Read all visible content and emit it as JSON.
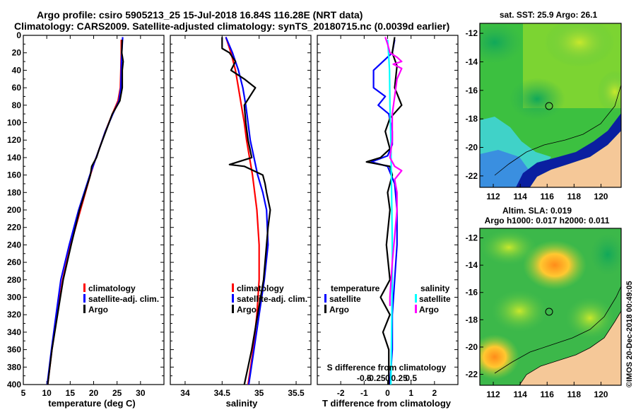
{
  "header": {
    "line1": "Argo profile: csiro 5905213_25 15-Jul-2018 16.84S 116.28E (NRT data)",
    "line2": "Climatology: CARS2009. Satellite-adjusted climatology: synTS_20180715.nc (0.0039d earlier)"
  },
  "colors": {
    "climatology": "#ff0000",
    "satellite": "#0000ff",
    "argo": "#000000",
    "argo_salinity_diff": "#ff00ff",
    "satellite_salinity_diff": "#00ffff",
    "land": "#f5c898"
  },
  "chart_data": [
    {
      "type": "line",
      "name": "temperature-profile",
      "xlabel": "temperature (deg C)",
      "ylabel": "",
      "xlim": [
        5,
        35
      ],
      "ylim": [
        400,
        0
      ],
      "xticks": [
        "5",
        "10",
        "15",
        "20",
        "25",
        "30"
      ],
      "yticks": [
        "0",
        "20",
        "40",
        "60",
        "80",
        "100",
        "120",
        "140",
        "160",
        "180",
        "200",
        "220",
        "240",
        "260",
        "280",
        "300",
        "320",
        "340",
        "360",
        "380",
        "400"
      ],
      "legend": [
        "climatology",
        "satellite-adj. clim.",
        "Argo"
      ],
      "series": [
        {
          "name": "climatology",
          "color": "#ff0000",
          "depth": [
            5,
            20,
            40,
            60,
            75,
            90,
            110,
            130,
            145,
            160,
            200,
            240,
            280,
            320,
            360,
            400
          ],
          "values": [
            25.9,
            25.9,
            25.8,
            25.7,
            25.2,
            24.0,
            22.5,
            21.2,
            20.2,
            19.3,
            17.2,
            15.1,
            13.4,
            12.2,
            11.1,
            10.2
          ]
        },
        {
          "name": "satellite-adj. clim.",
          "color": "#0000ff",
          "depth": [
            2,
            20,
            40,
            60,
            75,
            90,
            110,
            130,
            145,
            160,
            200,
            240,
            280,
            320,
            360,
            400
          ],
          "values": [
            26.2,
            26.0,
            25.9,
            25.8,
            25.4,
            24.1,
            22.5,
            21.2,
            20.2,
            19.2,
            16.8,
            14.8,
            13.0,
            12.0,
            11.0,
            10.1
          ]
        },
        {
          "name": "Argo",
          "color": "#000000",
          "depth": [
            5,
            20,
            30,
            40,
            60,
            75,
            90,
            110,
            130,
            140,
            150,
            160,
            200,
            240,
            280,
            300,
            320,
            360,
            400
          ],
          "values": [
            26.1,
            26.0,
            26.3,
            26.1,
            26.1,
            25.6,
            24.0,
            22.6,
            21.2,
            20.6,
            19.6,
            19.3,
            17.0,
            15.2,
            13.5,
            12.9,
            12.3,
            11.1,
            10.2
          ]
        }
      ]
    },
    {
      "type": "line",
      "name": "salinity-profile",
      "xlabel": "salinity",
      "ylabel": "",
      "xlim": [
        33.8,
        35.7
      ],
      "ylim": [
        400,
        0
      ],
      "xticks": [
        "34",
        "34.5",
        "35",
        "35.5"
      ],
      "legend": [
        "climatology",
        "satellite-adj. clim.",
        "Argo"
      ],
      "series": [
        {
          "name": "climatology",
          "color": "#ff0000",
          "depth": [
            2,
            20,
            40,
            60,
            80,
            100,
            120,
            140,
            160,
            180,
            200,
            240,
            280,
            320,
            360,
            400
          ],
          "values": [
            34.55,
            34.62,
            34.68,
            34.72,
            34.76,
            34.8,
            34.83,
            34.87,
            34.91,
            34.94,
            34.97,
            35.0,
            35.0,
            34.97,
            34.92,
            34.85
          ]
        },
        {
          "name": "satellite-adj. clim.",
          "color": "#0000ff",
          "depth": [
            2,
            20,
            40,
            60,
            80,
            100,
            120,
            140,
            160,
            180,
            200,
            240,
            280,
            320,
            360,
            400
          ],
          "values": [
            34.55,
            34.64,
            34.72,
            34.78,
            34.82,
            34.85,
            34.88,
            34.93,
            34.98,
            35.05,
            35.1,
            35.12,
            35.07,
            35.0,
            34.93,
            34.86
          ]
        },
        {
          "name": "Argo",
          "color": "#000000",
          "depth": [
            2,
            15,
            20,
            30,
            40,
            50,
            60,
            80,
            100,
            120,
            140,
            148,
            150,
            160,
            170,
            180,
            200,
            220,
            240,
            260,
            280,
            300,
            320,
            340,
            360,
            380,
            400
          ],
          "values": [
            34.5,
            34.5,
            34.6,
            34.68,
            34.62,
            34.8,
            34.95,
            34.8,
            34.82,
            34.85,
            34.9,
            34.6,
            34.8,
            35.05,
            35.08,
            35.1,
            35.15,
            35.12,
            35.1,
            35.08,
            35.06,
            35.02,
            34.98,
            34.94,
            34.9,
            34.85,
            34.8
          ]
        }
      ]
    },
    {
      "type": "line",
      "name": "difference-profile",
      "xlabel": "T difference from climatology",
      "ylabel": "",
      "xlim": [
        -3,
        3
      ],
      "ylim": [
        400,
        0
      ],
      "xticks": [
        "-2",
        "-1",
        "0",
        "1",
        "2"
      ],
      "secondary_xlabel": "S difference from climatology",
      "secondary_xticks": [
        "-0.5",
        "-0.25",
        "0",
        "0.25",
        "0.5"
      ],
      "legend": [
        "temperature",
        "satellite",
        "Argo",
        "salinity",
        "satellite",
        "Argo"
      ],
      "series": [
        {
          "name": "temperature satellite",
          "color": "#0000ff",
          "depth": [
            5,
            20,
            40,
            60,
            70,
            80,
            90,
            110,
            125,
            138,
            145,
            150,
            170,
            200,
            240,
            280,
            320,
            360,
            400
          ],
          "values": [
            0.3,
            0.2,
            -0.6,
            -0.6,
            -0.1,
            -0.4,
            0.05,
            0.2,
            0.2,
            0.0,
            -0.7,
            0.0,
            0.3,
            0.4,
            0.4,
            0.3,
            0.2,
            0.2,
            0.1
          ]
        },
        {
          "name": "temperature Argo",
          "color": "#000000",
          "depth": [
            2,
            20,
            35,
            60,
            80,
            95,
            110,
            130,
            140,
            145,
            150,
            160,
            180,
            200,
            240,
            280,
            300,
            320,
            340,
            360,
            400
          ],
          "values": [
            0.3,
            0.2,
            0.4,
            0.3,
            0.6,
            0.1,
            -0.1,
            0.1,
            -0.3,
            -0.9,
            0.1,
            0.2,
            0.0,
            0.1,
            -0.05,
            0.1,
            -0.3,
            0.1,
            -0.2,
            0.05,
            0.05
          ]
        },
        {
          "name": "salinity satellite",
          "color": "#00ffff",
          "depth": [
            5,
            20,
            40,
            80,
            120,
            160,
            200,
            240,
            280,
            320,
            360,
            400
          ],
          "values": [
            0.0,
            0.02,
            0.04,
            0.05,
            0.07,
            0.08,
            0.09,
            0.1,
            0.1,
            0.09,
            0.08,
            0.07
          ]
        },
        {
          "name": "salinity Argo",
          "color": "#ff00ff",
          "depth": [
            2,
            10,
            20,
            25,
            30,
            33,
            38,
            50,
            70,
            90,
            120,
            140,
            150,
            155,
            165,
            180,
            200,
            230,
            260,
            300,
            310
          ],
          "values": [
            -0.05,
            0.0,
            0.05,
            0.2,
            0.3,
            0.12,
            0.3,
            0.2,
            0.15,
            0.1,
            0.1,
            0.05,
            0.15,
            0.3,
            0.15,
            0.2,
            0.2,
            0.15,
            0.1,
            0.05,
            0.05
          ]
        }
      ]
    },
    {
      "type": "heatmap",
      "name": "sst-map",
      "title": "sat. SST: 25.9 Argo: 26.1",
      "xlim": [
        111,
        121.5
      ],
      "ylim": [
        -22.8,
        -11.3
      ],
      "xticks": [
        "112",
        "114",
        "116",
        "118",
        "120"
      ],
      "yticks": [
        "-12",
        "-14",
        "-16",
        "-18",
        "-20",
        "-22"
      ],
      "float_position": {
        "lon": 116.28,
        "lat": -16.84
      }
    },
    {
      "type": "heatmap",
      "name": "sla-map",
      "title_line1": "Altim. SLA: 0.019",
      "title_line2": "Argo h1000: 0.017 h2000: 0.011",
      "xlim": [
        111,
        121.5
      ],
      "ylim": [
        -22.8,
        -11.3
      ],
      "xticks": [
        "112",
        "114",
        "116",
        "118",
        "120"
      ],
      "yticks": [
        "-12",
        "-14",
        "-16",
        "-18",
        "-20",
        "-22"
      ],
      "float_position": {
        "lon": 116.28,
        "lat": -16.84
      }
    }
  ],
  "credit": "©IMOS 20-Dec-2018 00:49:05"
}
